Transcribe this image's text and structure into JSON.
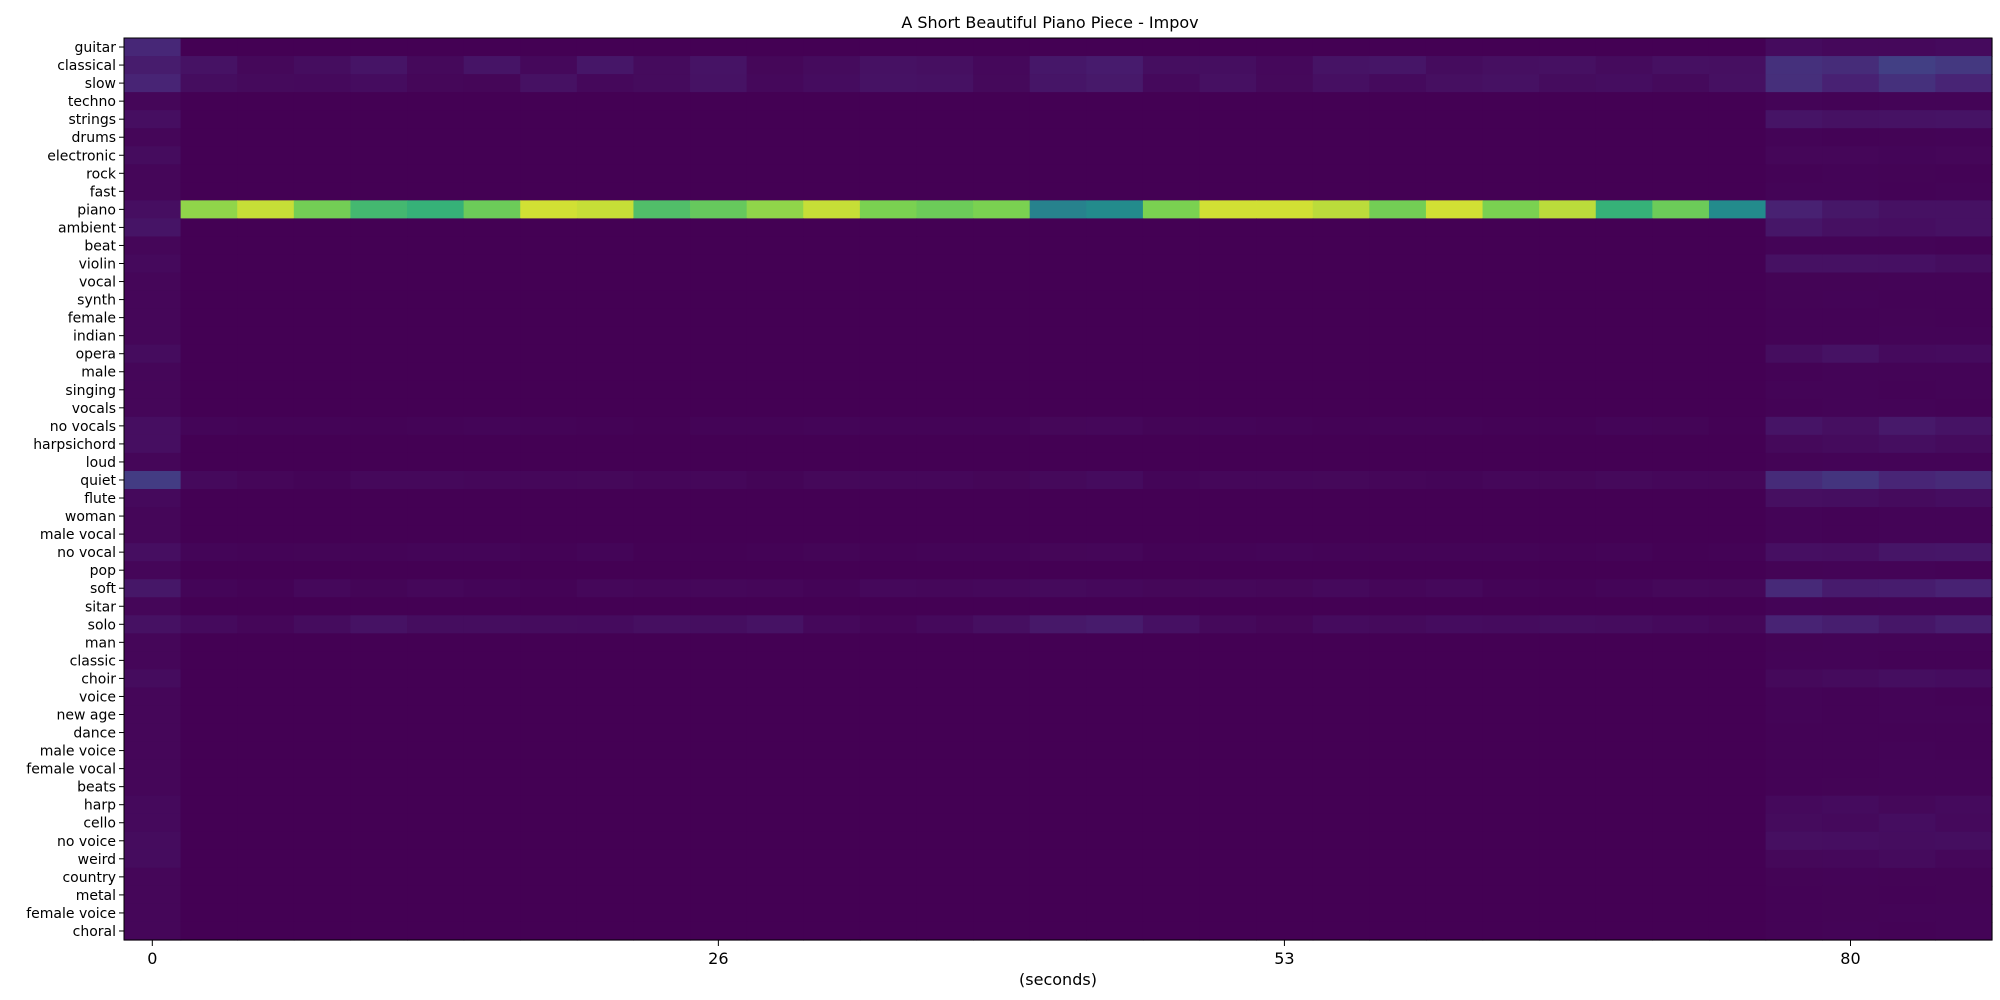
{
  "chart_data": {
    "type": "heatmap",
    "title": "A Short Beautiful Piano Piece - Impov",
    "xlabel": "(seconds)",
    "ylabel": "",
    "x_ticks": [
      {
        "label": "0",
        "col": 0
      },
      {
        "label": "26",
        "col": 10
      },
      {
        "label": "53",
        "col": 20
      },
      {
        "label": "80",
        "col": 30
      }
    ],
    "n_columns": 33,
    "colormap": "viridis",
    "value_range": [
      0,
      1
    ],
    "tags": [
      "guitar",
      "classical",
      "slow",
      "techno",
      "strings",
      "drums",
      "electronic",
      "rock",
      "fast",
      "piano",
      "ambient",
      "beat",
      "violin",
      "vocal",
      "synth",
      "female",
      "indian",
      "opera",
      "male",
      "singing",
      "vocals",
      "no vocals",
      "harpsichord",
      "loud",
      "quiet",
      "flute",
      "woman",
      "male vocal",
      "no vocal",
      "pop",
      "soft",
      "sitar",
      "solo",
      "man",
      "classic",
      "choir",
      "voice",
      "new age",
      "dance",
      "male voice",
      "female vocal",
      "beats",
      "harp",
      "cello",
      "no voice",
      "weird",
      "country",
      "metal",
      "female voice",
      "choral"
    ],
    "piano_values": [
      0.05,
      0.9,
      0.95,
      0.87,
      0.8,
      0.78,
      0.86,
      0.96,
      0.95,
      0.82,
      0.85,
      0.9,
      0.95,
      0.88,
      0.86,
      0.88,
      0.55,
      0.6,
      0.88,
      0.96,
      0.96,
      0.94,
      0.87,
      0.96,
      0.88,
      0.94,
      0.78,
      0.86,
      0.6,
      0.12,
      0.08,
      0.06,
      0.06
    ],
    "tag_profiles": {
      "guitar": {
        "first": 0.14,
        "base": 0.0,
        "end": 0.03
      },
      "classical": {
        "first": 0.1,
        "base": 0.05,
        "end": 0.18
      },
      "slow": {
        "first": 0.13,
        "base": 0.04,
        "end": 0.16
      },
      "strings": {
        "first": 0.05,
        "base": 0.0,
        "end": 0.06
      },
      "electronic": {
        "first": 0.04,
        "base": 0.0,
        "end": 0.02
      },
      "ambient": {
        "first": 0.07,
        "base": 0.0,
        "end": 0.06
      },
      "violin": {
        "first": 0.03,
        "base": 0.0,
        "end": 0.05
      },
      "opera": {
        "first": 0.04,
        "base": 0.0,
        "end": 0.05
      },
      "no vocals": {
        "first": 0.05,
        "base": 0.01,
        "end": 0.07
      },
      "harpsichord": {
        "first": 0.05,
        "base": 0.0,
        "end": 0.04
      },
      "quiet": {
        "first": 0.22,
        "base": 0.02,
        "end": 0.17
      },
      "flute": {
        "first": 0.03,
        "base": 0.0,
        "end": 0.04
      },
      "no vocal": {
        "first": 0.05,
        "base": 0.01,
        "end": 0.06
      },
      "soft": {
        "first": 0.08,
        "base": 0.02,
        "end": 0.12
      },
      "solo": {
        "first": 0.06,
        "base": 0.04,
        "end": 0.1
      },
      "choir": {
        "first": 0.04,
        "base": 0.0,
        "end": 0.04
      },
      "harp": {
        "first": 0.03,
        "base": 0.0,
        "end": 0.03
      },
      "cello": {
        "first": 0.03,
        "base": 0.0,
        "end": 0.04
      },
      "no voice": {
        "first": 0.04,
        "base": 0.0,
        "end": 0.04
      },
      "weird": {
        "first": 0.04,
        "base": 0.0,
        "end": 0.03
      }
    }
  }
}
